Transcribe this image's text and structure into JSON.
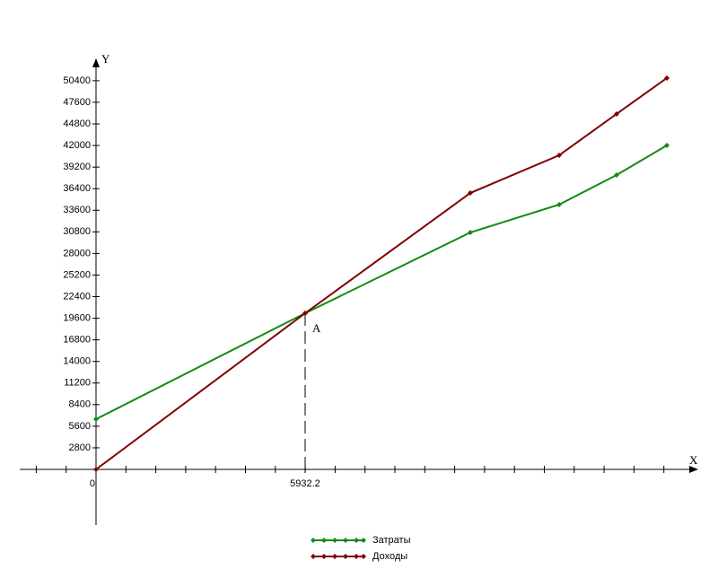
{
  "chart_data": {
    "type": "line",
    "x_label": "X",
    "y_label": "Y",
    "point_label": "A",
    "x": [
      0,
      5932.2,
      10617,
      13137,
      14767,
      16193
    ],
    "series": [
      {
        "name": "Затраты",
        "color": "#138a13",
        "values": [
          6520,
          20250,
          30720,
          34330,
          38170,
          42010
        ]
      },
      {
        "name": "Доходы",
        "color": "#800000",
        "values": [
          0,
          20250,
          35840,
          40730,
          46090,
          50740
        ]
      }
    ],
    "xlim": [
      -2164,
      17084
    ],
    "ylim": [
      -7215,
      53300
    ],
    "xticks": [
      0,
      5932.2
    ],
    "yticks": [
      2800,
      5600,
      8400,
      11200,
      14000,
      16800,
      19600,
      22400,
      25200,
      28000,
      30800,
      33600,
      36400,
      39200,
      42000,
      44800,
      47600,
      50400
    ],
    "marker_index": 1
  }
}
